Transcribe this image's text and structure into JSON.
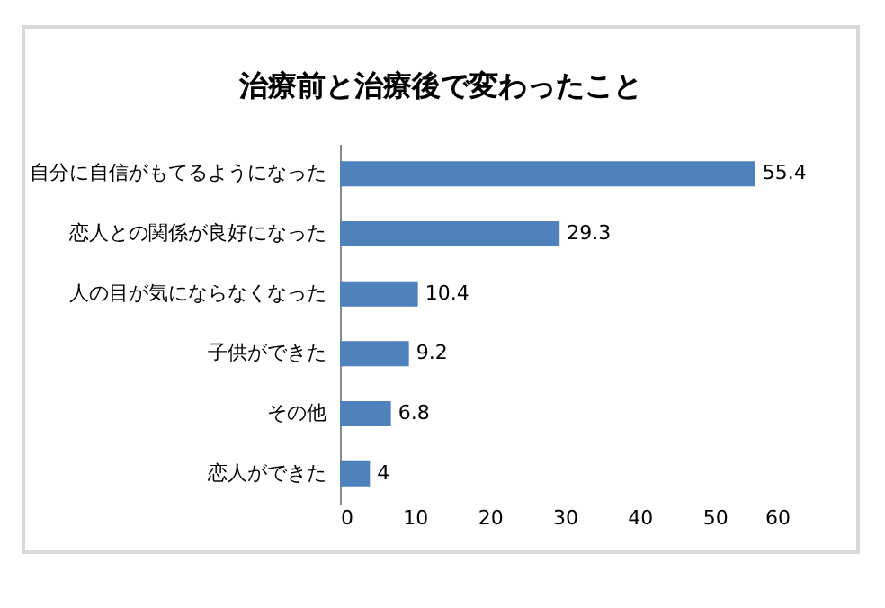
{
  "chart_data": {
    "type": "bar",
    "orientation": "horizontal",
    "title": "治療前と治療後で変わったこと",
    "categories": [
      "自分に自信がもてるようになった",
      "恋人との関係が良好になった",
      "人の目が気にならなくなった",
      "子供ができた",
      "その他",
      "恋人ができた"
    ],
    "values": [
      55.4,
      29.3,
      10.4,
      9.2,
      6.8,
      4
    ],
    "color": "#4f81bd",
    "xlim": [
      0,
      60
    ],
    "xticks": [
      0,
      10,
      20,
      30,
      40,
      50,
      60
    ],
    "data_labels": true,
    "grid": false
  }
}
